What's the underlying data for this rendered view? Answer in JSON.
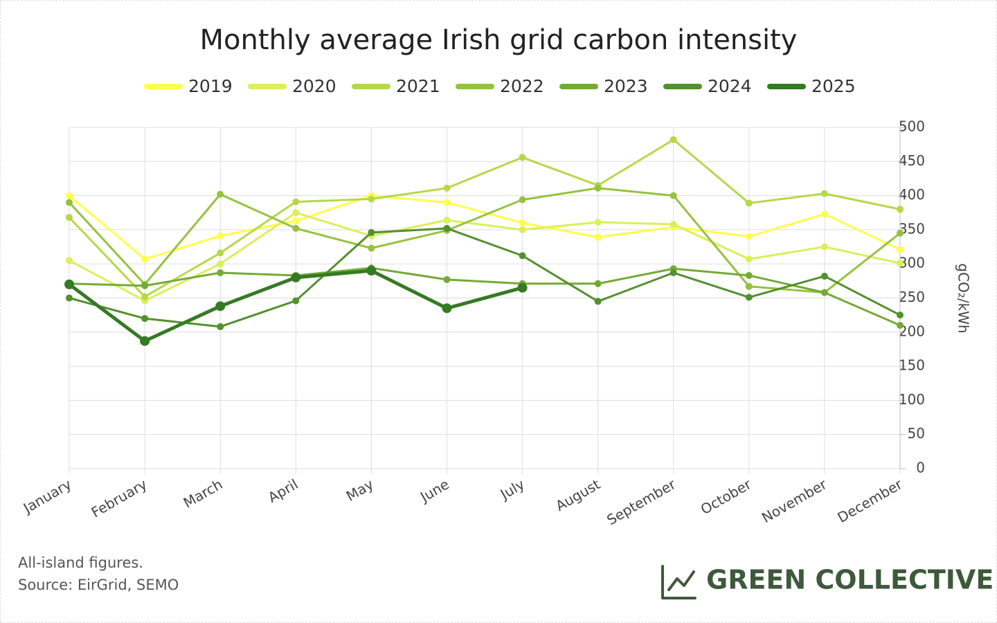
{
  "chart_data": {
    "type": "line",
    "title": "Monthly average Irish grid carbon intensity",
    "y_label": "gCO₂/kWh",
    "categories": [
      "January",
      "February",
      "March",
      "April",
      "May",
      "June",
      "July",
      "August",
      "September",
      "October",
      "November",
      "December"
    ],
    "series": [
      {
        "name": "2019",
        "color": "#ffff4a",
        "values": [
          400,
          307,
          341,
          363,
          400,
          390,
          360,
          339,
          354,
          340,
          373,
          321
        ]
      },
      {
        "name": "2020",
        "color": "#dcee5a",
        "values": [
          305,
          246,
          300,
          375,
          341,
          364,
          350,
          361,
          358,
          307,
          325,
          301
        ]
      },
      {
        "name": "2021",
        "color": "#b5d84a",
        "values": [
          368,
          252,
          316,
          391,
          395,
          411,
          456,
          415,
          482,
          389,
          403,
          380
        ]
      },
      {
        "name": "2022",
        "color": "#95c23e",
        "values": [
          390,
          270,
          402,
          352,
          323,
          349,
          394,
          411,
          400,
          267,
          258,
          345
        ]
      },
      {
        "name": "2023",
        "color": "#74aa35",
        "values": [
          271,
          268,
          287,
          283,
          294,
          277,
          271,
          271,
          293,
          283,
          258,
          210
        ]
      },
      {
        "name": "2024",
        "color": "#53902e",
        "values": [
          250,
          220,
          208,
          246,
          346,
          352,
          312,
          245,
          287,
          251,
          282,
          225
        ]
      },
      {
        "name": "2025",
        "color": "#357a24",
        "values": [
          270,
          187,
          238,
          280,
          290,
          235,
          265,
          null,
          null,
          null,
          null,
          null
        ]
      }
    ],
    "ylim": [
      0,
      500
    ],
    "yticks": [
      0,
      50,
      100,
      150,
      200,
      250,
      300,
      350,
      400,
      450,
      500
    ],
    "grid": true,
    "legend": "top",
    "notes": [
      "All-island figures.",
      "Source: EirGrid, SEMO"
    ],
    "brand": "GREEN COLLECTIVE"
  }
}
